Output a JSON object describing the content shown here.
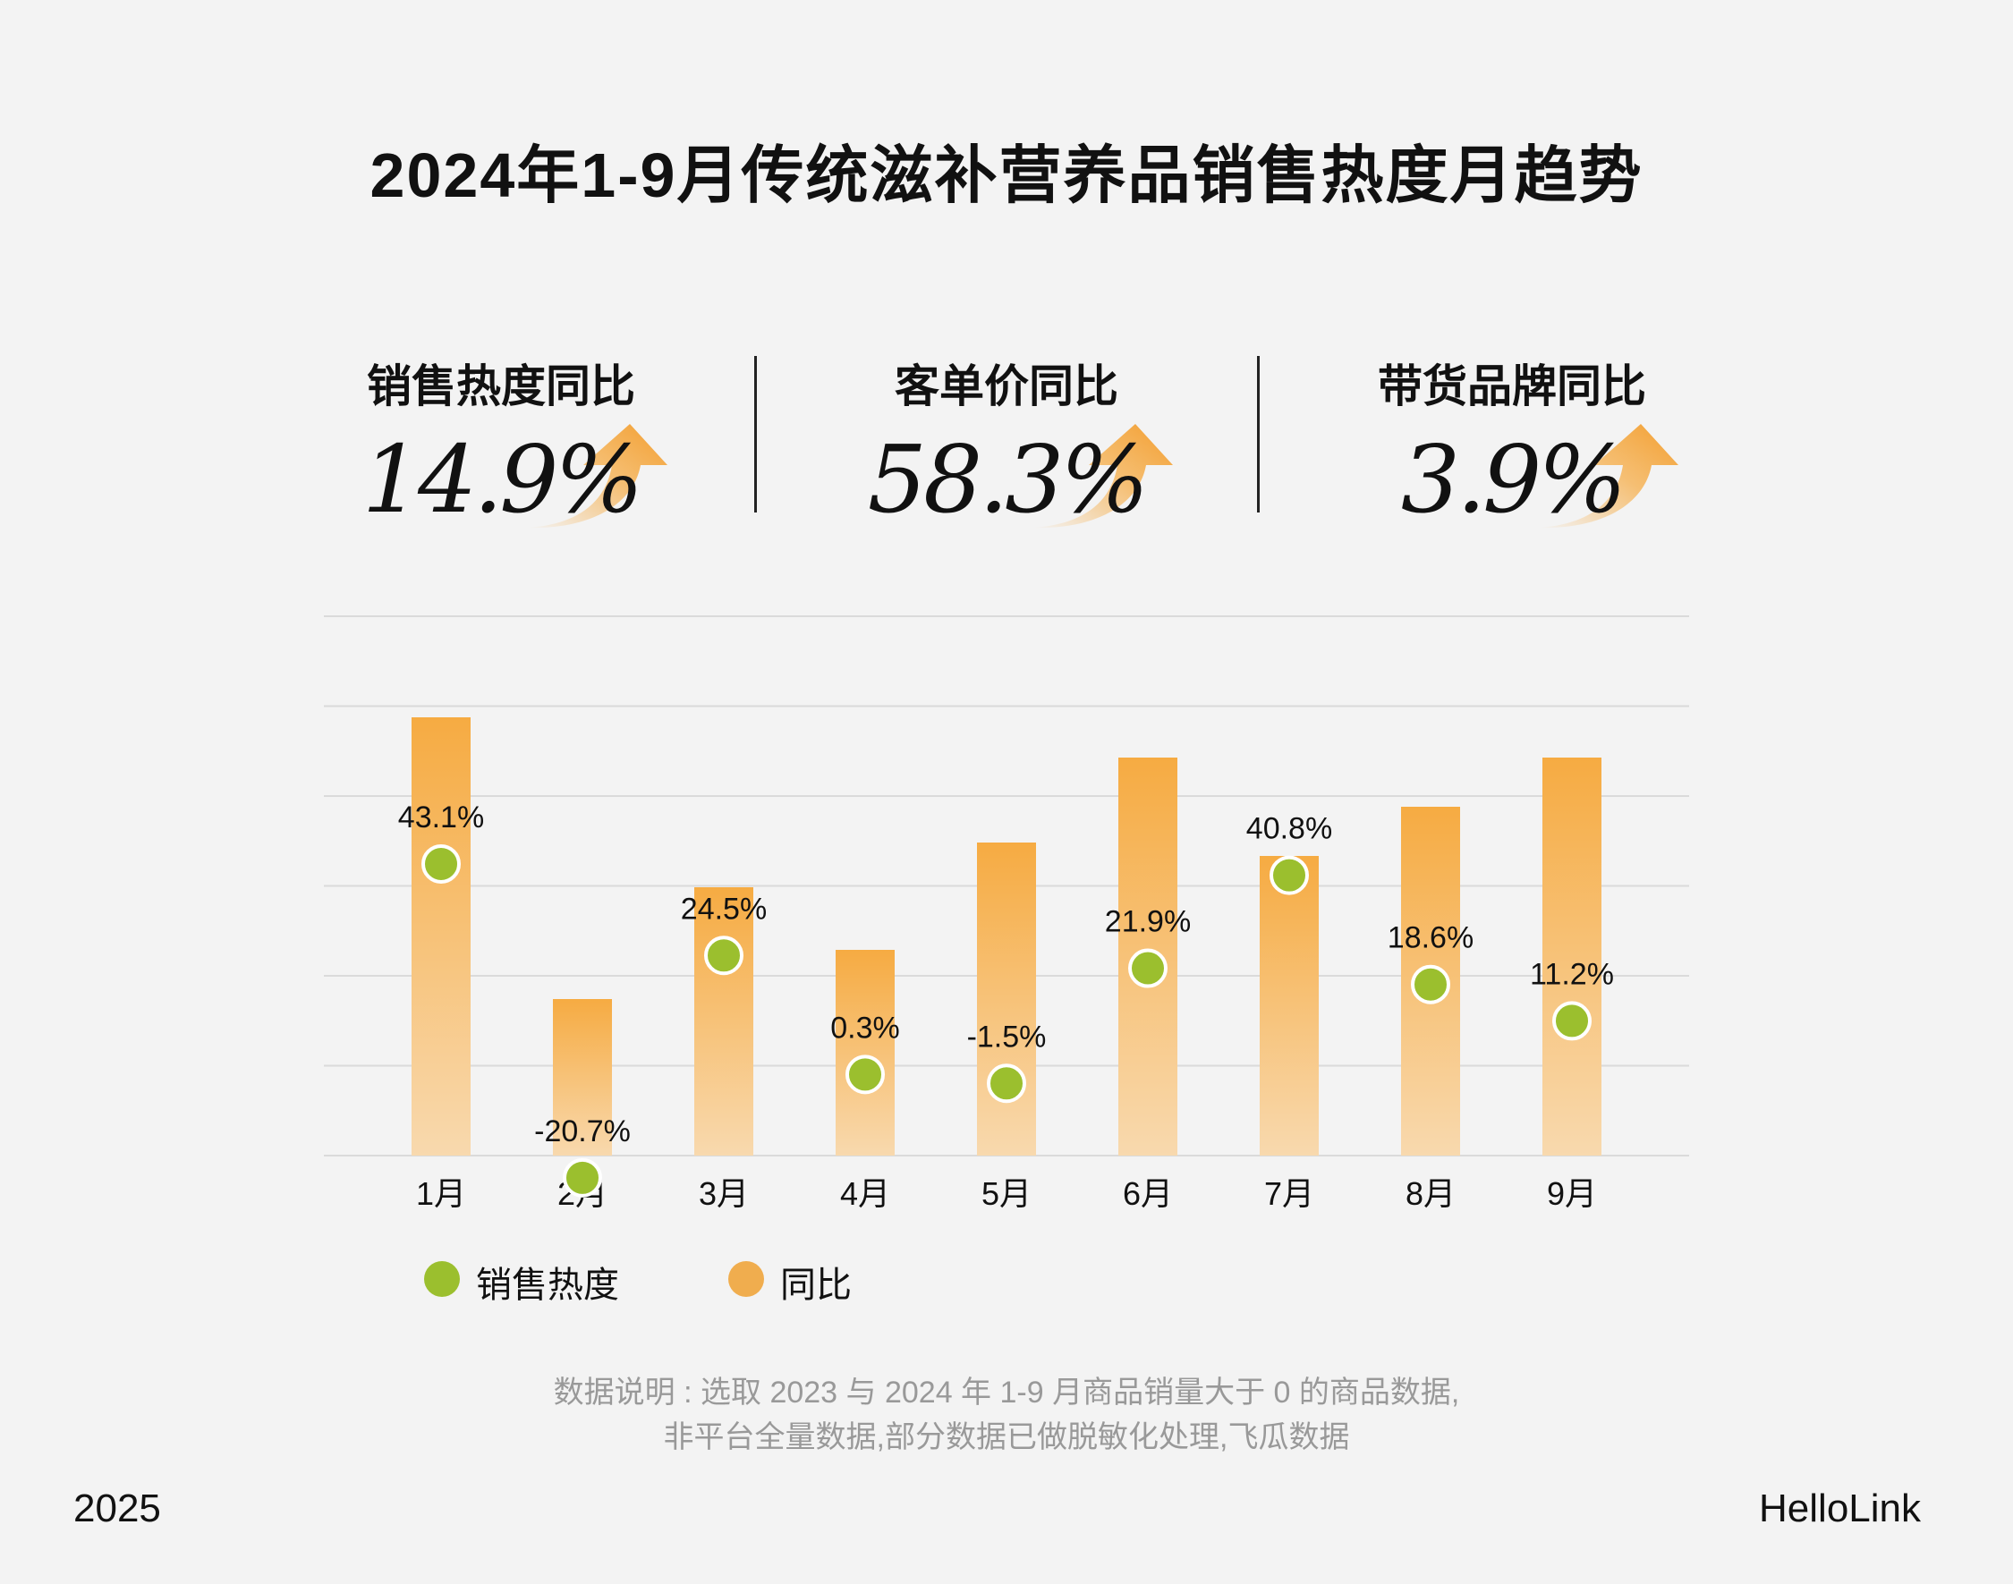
{
  "title": "2024年1-9月传统滋补营养品销售热度月趋势",
  "stats": [
    {
      "label": "销售热度同比",
      "value": "14.9%"
    },
    {
      "label": "客单价同比",
      "value": "58.3%"
    },
    {
      "label": "带货品牌同比",
      "value": "3.9%"
    }
  ],
  "colors": {
    "bar": "#f5a93f",
    "dot": "#9bbf2e",
    "text": "#111111",
    "note": "#999999"
  },
  "chart_data": {
    "type": "bar",
    "categories": [
      "1月",
      "2月",
      "3月",
      "4月",
      "5月",
      "6月",
      "7月",
      "8月",
      "9月"
    ],
    "series": [
      {
        "name": "同比",
        "kind": "bar",
        "values": [
          49,
          17.5,
          30,
          23,
          35,
          44.5,
          33.5,
          39,
          44.5
        ],
        "labels_shown": false
      },
      {
        "name": "销售热度",
        "kind": "point",
        "values": [
          43.1,
          -20.7,
          24.5,
          0.3,
          -1.5,
          21.9,
          40.8,
          18.6,
          11.2
        ],
        "labels": [
          "43.1%",
          "-20.7%",
          "24.5%",
          "0.3%",
          "-1.5%",
          "21.9%",
          "40.8%",
          "18.6%",
          "11.2%"
        ]
      }
    ],
    "grid": true,
    "legend": "bottom-left"
  },
  "legend": [
    {
      "label": "销售热度",
      "color": "#9bbf2e"
    },
    {
      "label": "同比",
      "color": "#f0ad4e"
    }
  ],
  "note_lines": [
    "数据说明 : 选取 2023 与 2024 年 1-9 月商品销量大于 0 的商品数据,",
    "非平台全量数据,部分数据已做脱敏化处理,飞瓜数据"
  ],
  "footer": {
    "left": "2025",
    "right": "HelloLink"
  }
}
